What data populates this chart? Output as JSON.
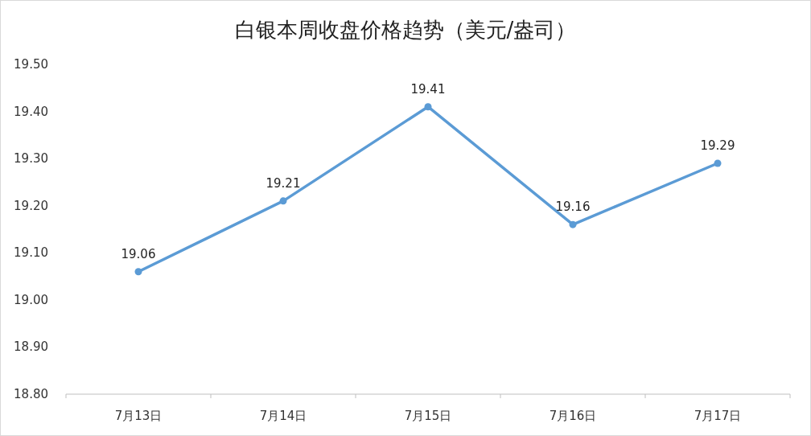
{
  "chart_data": {
    "type": "line",
    "title": "白银本周收盘价格趋势（美元/盎司）",
    "categories": [
      "7月13日",
      "7月14日",
      "7月15日",
      "7月16日",
      "7月17日"
    ],
    "series": [
      {
        "color": "#5b9bd5",
        "values": [
          19.06,
          19.21,
          19.41,
          19.16,
          19.29
        ]
      }
    ],
    "ylim": [
      18.8,
      19.5
    ],
    "yticks": [
      {
        "value": 18.8,
        "label": "18.80"
      },
      {
        "value": 18.9,
        "label": "18.90"
      },
      {
        "value": 19.0,
        "label": "19.00"
      },
      {
        "value": 19.1,
        "label": "19.10"
      },
      {
        "value": 19.2,
        "label": "19.20"
      },
      {
        "value": 19.3,
        "label": "19.30"
      },
      {
        "value": 19.4,
        "label": "19.40"
      },
      {
        "value": 19.5,
        "label": "19.50"
      }
    ],
    "data_labels": true,
    "marker": "circle",
    "line_style": "solid",
    "grid": false
  }
}
